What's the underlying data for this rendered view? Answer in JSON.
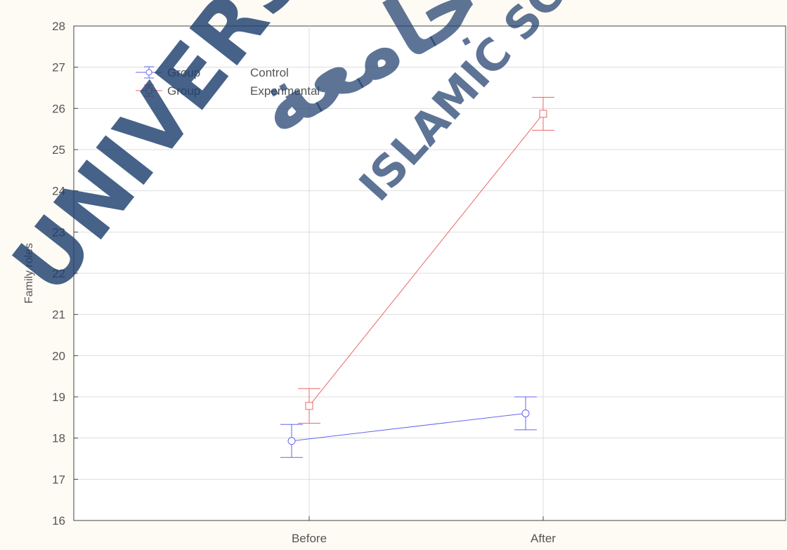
{
  "chart_data": {
    "type": "line",
    "categories": [
      "Before",
      "After"
    ],
    "ylabel": "Family roles",
    "ylim": [
      16,
      28
    ],
    "yticks": [
      16,
      17,
      18,
      19,
      20,
      21,
      22,
      23,
      24,
      25,
      26,
      27,
      28
    ],
    "grid": true,
    "legend_position": "top-left",
    "error_bars": true,
    "series": [
      {
        "name": "Group    Control",
        "legend_label": "Group",
        "legend_value": "Control",
        "color": "#6666ee",
        "marker": "circle",
        "values": [
          17.93,
          18.6
        ],
        "lower": [
          17.53,
          18.2
        ],
        "upper": [
          18.33,
          19.0
        ]
      },
      {
        "name": "Group    Experimental",
        "legend_label": "Group",
        "legend_value": "Experimental",
        "color": "#ee6666",
        "marker": "square",
        "values": [
          18.78,
          25.87
        ],
        "lower": [
          18.36,
          25.47
        ],
        "upper": [
          19.2,
          26.27
        ]
      }
    ]
  },
  "watermark": {
    "main": "UNIVERSITI",
    "arabic": "جامعة",
    "sub": "ISLAMIC SCIENCE"
  }
}
